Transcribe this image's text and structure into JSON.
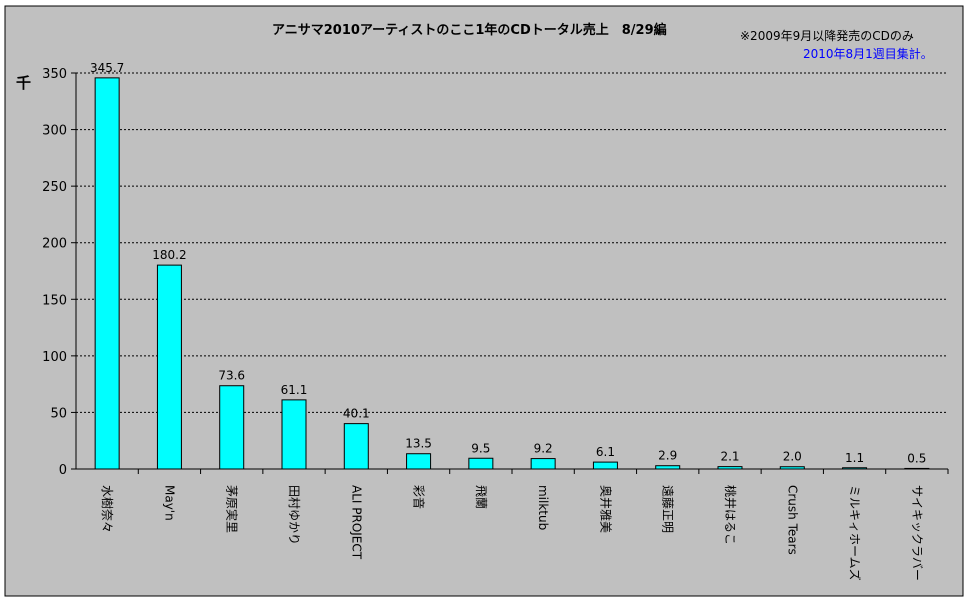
{
  "chart_data": {
    "type": "bar",
    "title": "アニサマ2010アーティストのここ1年のCDトータル売上　8/29編",
    "notes": [
      "※2009年9月以降発売のCDのみ",
      "2010年8月1週目集計。"
    ],
    "ylabel": "千",
    "xlabel": "",
    "ylim": [
      0,
      350
    ],
    "yticks": [
      0,
      50,
      100,
      150,
      200,
      250,
      300,
      350
    ],
    "grid": true,
    "categories": [
      "水樹奈々",
      "May'n",
      "茅原実里",
      "田村ゆかり",
      "ALI PROJECT",
      "彩音",
      "飛蘭",
      "milktub",
      "奥井雅美",
      "遠藤正明",
      "桃井はるこ",
      "Crush Tears",
      "ミルキィホームズ",
      "サイキックラバー"
    ],
    "values": [
      345.7,
      180.2,
      73.6,
      61.1,
      40.1,
      13.5,
      9.5,
      9.2,
      6.1,
      2.9,
      2.1,
      2.0,
      1.1,
      0.5
    ],
    "value_labels": [
      "345.7",
      "180.2",
      "73.6",
      "61.1",
      "40.1",
      "13.5",
      "9.5",
      "9.2",
      "6.1",
      "2.9",
      "2.1",
      "2.0",
      "1.1",
      "0.5"
    ],
    "colors": {
      "bar": "#00ffff",
      "plot_bg": "#c0c0c0",
      "frame_bg": "#c0c0c0",
      "note2": "#0000ff"
    }
  }
}
